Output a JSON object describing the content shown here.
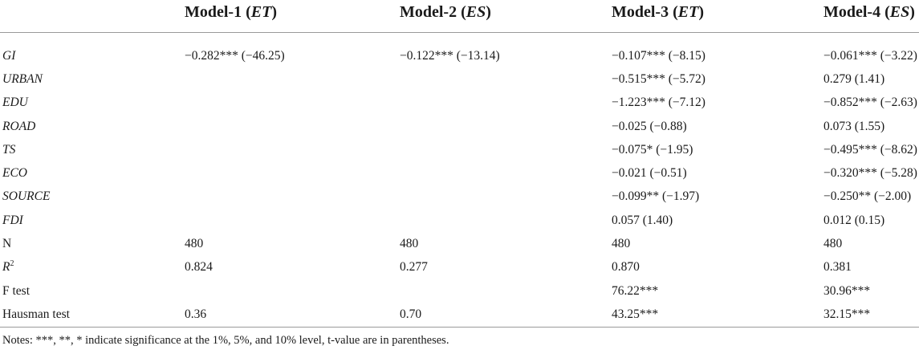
{
  "header": {
    "col1": {
      "prefix": "Model-1 (",
      "var": "ET",
      "suffix": ")"
    },
    "col2": {
      "prefix": "Model-2 (",
      "var": "ES",
      "suffix": ")"
    },
    "col3": {
      "prefix": "Model-3 (",
      "var": "ET",
      "suffix": ")"
    },
    "col4": {
      "prefix": "Model-4 (",
      "var": "ES",
      "suffix": ")"
    }
  },
  "rows": [
    {
      "label": "GI",
      "m1": "−0.282*** (−46.25)",
      "m2": "−0.122*** (−13.14)",
      "m3": "−0.107*** (−8.15)",
      "m4": "−0.061*** (−3.22)"
    },
    {
      "label": "URBAN",
      "m1": "",
      "m2": "",
      "m3": "−0.515*** (−5.72)",
      "m4": "0.279 (1.41)"
    },
    {
      "label": "EDU",
      "m1": "",
      "m2": "",
      "m3": "−1.223*** (−7.12)",
      "m4": "−0.852*** (−2.63)"
    },
    {
      "label": "ROAD",
      "m1": "",
      "m2": "",
      "m3": "−0.025 (−0.88)",
      "m4": "0.073 (1.55)"
    },
    {
      "label": "TS",
      "m1": "",
      "m2": "",
      "m3": "−0.075* (−1.95)",
      "m4": "−0.495*** (−8.62)"
    },
    {
      "label": "ECO",
      "m1": "",
      "m2": "",
      "m3": "−0.021 (−0.51)",
      "m4": "−0.320*** (−5.28)"
    },
    {
      "label": "SOURCE",
      "m1": "",
      "m2": "",
      "m3": "−0.099** (−1.97)",
      "m4": "−0.250** (−2.00)"
    },
    {
      "label": "FDI",
      "m1": "",
      "m2": "",
      "m3": "0.057 (1.40)",
      "m4": "0.012 (0.15)"
    },
    {
      "label": "N",
      "m1": "480",
      "m2": "480",
      "m3": "480",
      "m4": "480"
    },
    {
      "label_base": "R",
      "label_sup": "2",
      "m1": "0.824",
      "m2": "0.277",
      "m3": "0.870",
      "m4": "0.381"
    },
    {
      "label": "F test",
      "m1": "",
      "m2": "",
      "m3": "76.22***",
      "m4": "30.96***"
    },
    {
      "label": "Hausman test",
      "m1": "0.36",
      "m2": "0.70",
      "m3": "43.25***",
      "m4": "32.15***"
    }
  ],
  "notes": "Notes: ***, **, * indicate significance at the 1%, 5%, and 10% level, t-value are in parentheses."
}
